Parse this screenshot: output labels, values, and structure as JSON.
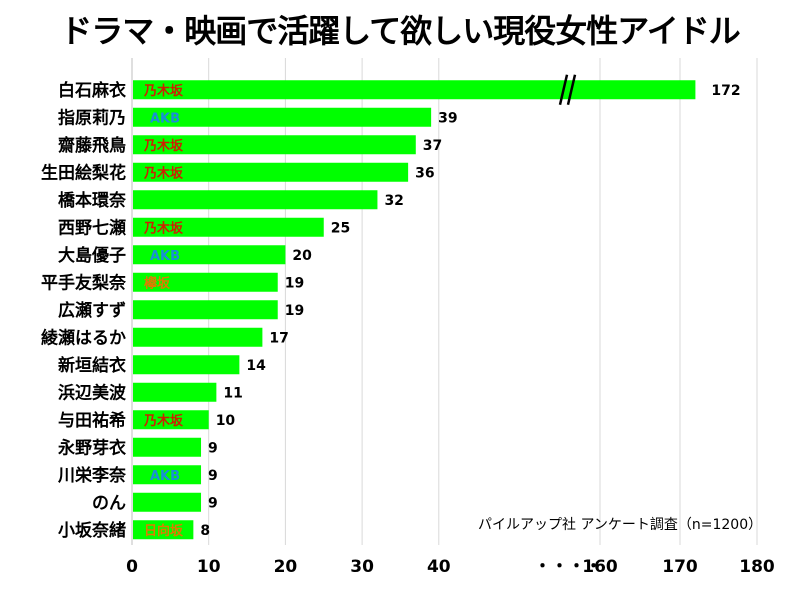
{
  "chart_data": {
    "type": "bar",
    "orientation": "horizontal",
    "title": "ドラマ・映画で活躍して欲しい現役女性アイドル",
    "source_note": "パイルアップ社 アンケート調査（n=1200）",
    "categories": [
      "白石麻衣",
      "指原莉乃",
      "齋藤飛鳥",
      "生田絵梨花",
      "橋本環奈",
      "西野七瀬",
      "大島優子",
      "平手友梨奈",
      "広瀬すず",
      "綾瀬はるか",
      "新垣結衣",
      "浜辺美波",
      "与田祐希",
      "永野芽衣",
      "川栄李奈",
      "のん",
      "小坂奈緒"
    ],
    "values": [
      172,
      39,
      37,
      36,
      32,
      25,
      20,
      19,
      19,
      17,
      14,
      11,
      10,
      9,
      9,
      9,
      8
    ],
    "group_tags": [
      "乃木坂",
      "AKB",
      "乃木坂",
      "乃木坂",
      "",
      "乃木坂",
      "AKB",
      "欅坂",
      "",
      "",
      "",
      "",
      "乃木坂",
      "",
      "AKB",
      "",
      "日向坂"
    ],
    "x_ticks": [
      "0",
      "10",
      "20",
      "30",
      "40",
      "・・・・",
      "160",
      "170",
      "180"
    ],
    "axis_break": "//",
    "axis_break_range": [
      40,
      160
    ],
    "xlim": [
      0,
      180
    ],
    "bar_color": "#00ff00",
    "tag_colors": {
      "乃木坂": "#cc2200",
      "AKB": "#1a8fd6",
      "欅坂": "#e07a00",
      "日向坂": "#e07a00"
    },
    "grid": true,
    "legend": "none"
  }
}
